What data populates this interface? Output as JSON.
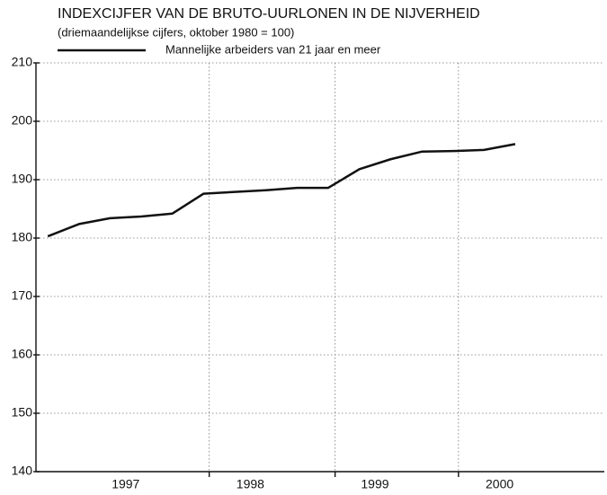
{
  "chart_data": {
    "type": "line",
    "title": "INDEXCIJFER VAN DE BRUTO-UURLONEN IN DE NIJVERHEID",
    "subtitle": "(driemaandelijkse cijfers, oktober 1980 = 100)",
    "x": [
      1996.875,
      1997.125,
      1997.375,
      1997.625,
      1997.875,
      1998.125,
      1998.375,
      1998.625,
      1998.875,
      1999.125,
      1999.375,
      1999.625,
      1999.875,
      2000.125,
      2000.375,
      2000.625
    ],
    "series": [
      {
        "name": "Mannelijke arbeiders van 21 jaar en meer",
        "color": "#111111",
        "values": [
          180.3,
          182.4,
          183.4,
          183.7,
          184.2,
          187.6,
          187.9,
          188.2,
          188.6,
          188.6,
          191.8,
          193.5,
          194.8,
          194.9,
          195.1,
          196.1
        ]
      }
    ],
    "xlim": [
      1996.78,
      2001.34
    ],
    "xticks": [
      {
        "value": 1997.5,
        "label": "1997"
      },
      {
        "value": 1998.5,
        "label": "1998"
      },
      {
        "value": 1999.5,
        "label": "1999"
      },
      {
        "value": 2000.5,
        "label": "2000"
      }
    ],
    "xgrid": [
      1998.17,
      1999.18,
      2000.17
    ],
    "ylim": [
      140,
      210
    ],
    "yticks": [
      140,
      150,
      160,
      170,
      180,
      190,
      200,
      210
    ],
    "grid": true
  }
}
